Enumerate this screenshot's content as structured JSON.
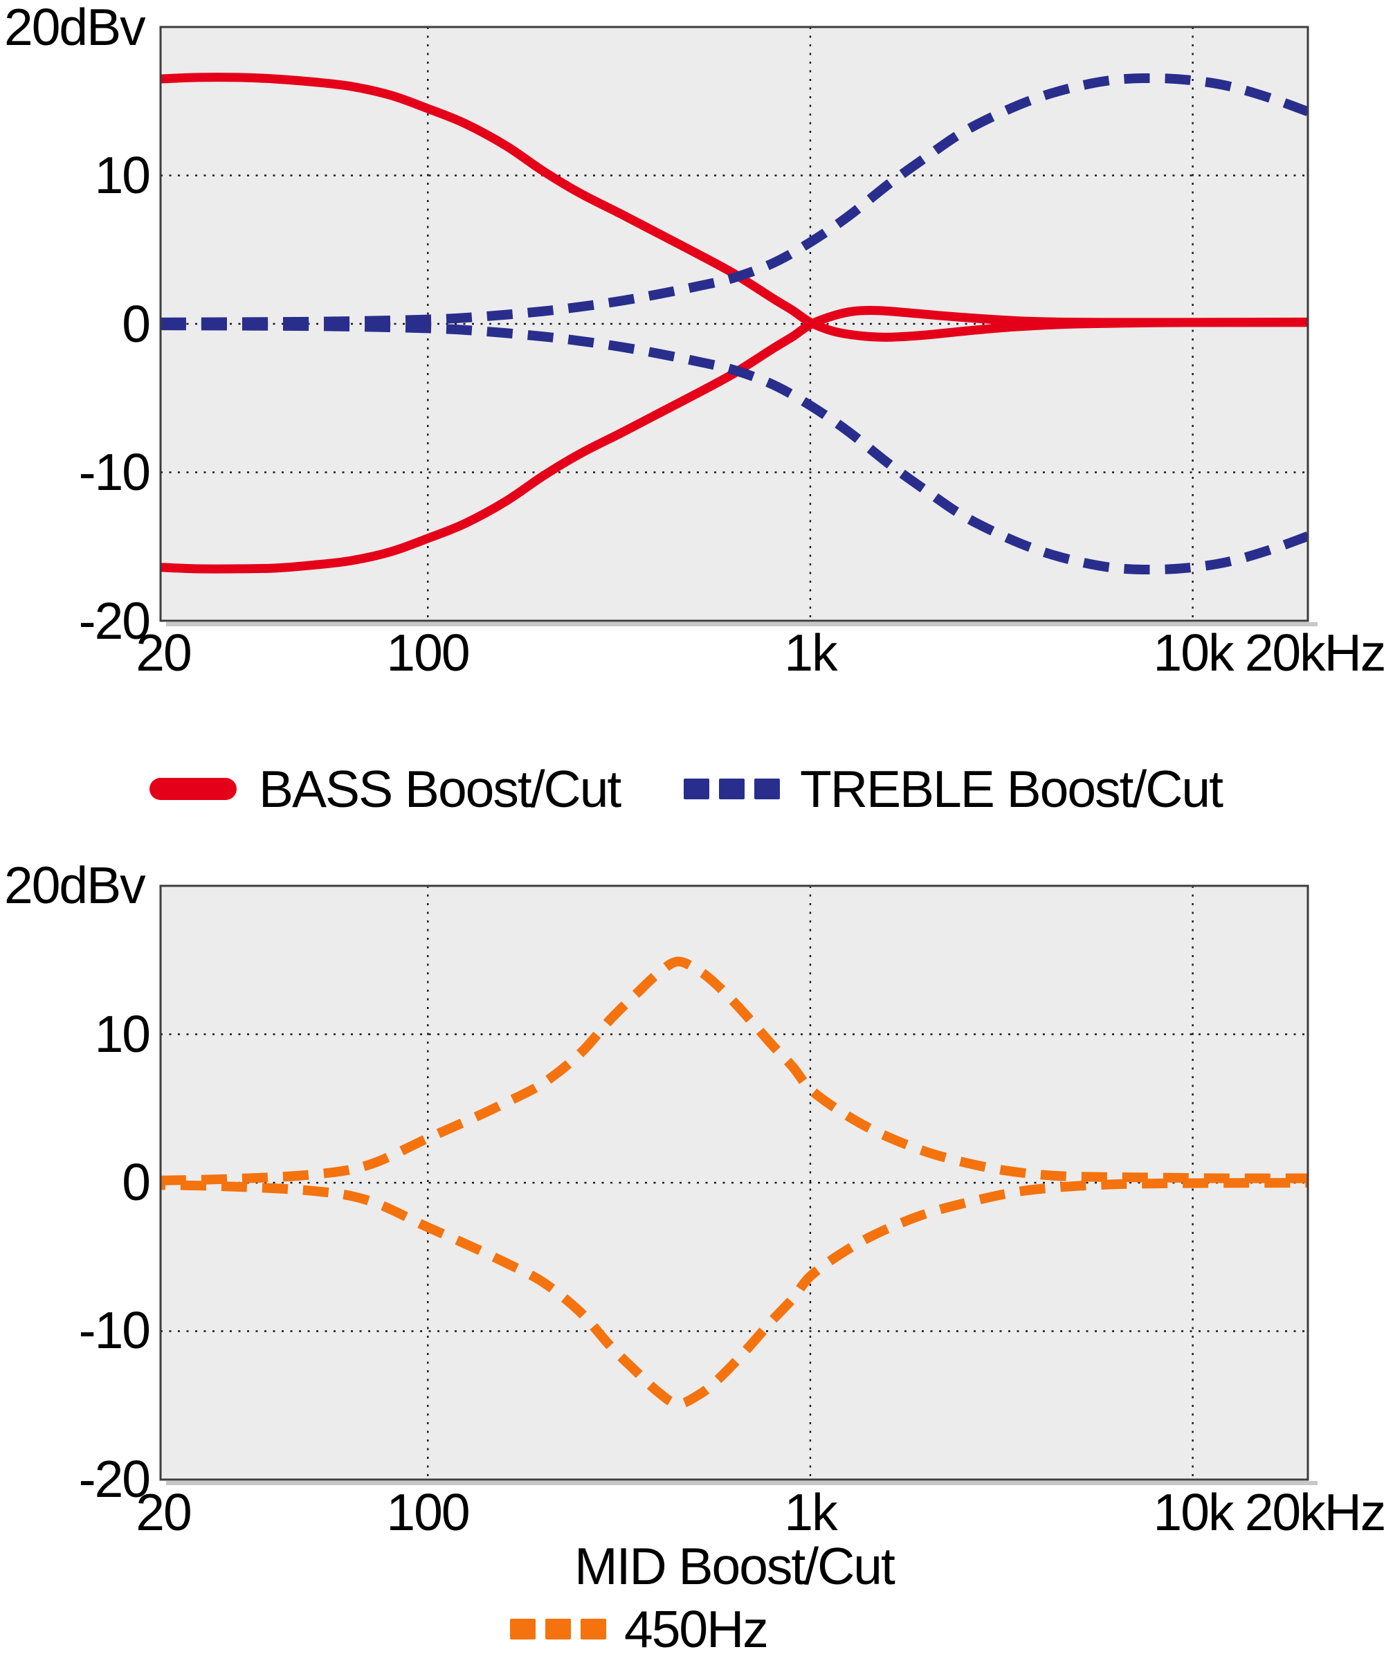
{
  "colors": {
    "bass": "#e50019",
    "treble": "#292e8d",
    "mid": "#f4730e",
    "plot_bg": "#ececec",
    "grid": "#161616",
    "border": "#3d3d3d",
    "shadow": "#c7c7c7"
  },
  "chart_data": [
    {
      "type": "line",
      "title": "",
      "x_axis": {
        "scale": "log",
        "min": 20,
        "max": 20000,
        "ticks": [
          {
            "f": 20,
            "label": "20"
          },
          {
            "f": 100,
            "label": "100"
          },
          {
            "f": 1000,
            "label": "1k"
          },
          {
            "f": 10000,
            "label": "10k"
          },
          {
            "f": 20000,
            "label": "20kHz"
          }
        ],
        "gridlines": [
          100,
          1000,
          10000
        ]
      },
      "y_axis": {
        "min": -20,
        "max": 20,
        "unit": "dBv",
        "ticks": [
          {
            "v": 20,
            "label": "20dBv"
          },
          {
            "v": 10,
            "label": "10"
          },
          {
            "v": 0,
            "label": "0"
          },
          {
            "v": -10,
            "label": "-10"
          },
          {
            "v": -20,
            "label": "-20"
          }
        ],
        "gridlines": [
          10,
          0,
          -10
        ]
      },
      "legend": [
        "BASS Boost/Cut",
        "TREBLE Boost/Cut"
      ],
      "series": [
        {
          "name": "BASS Boost",
          "color_key": "bass",
          "style": "solid",
          "points": [
            [
              20,
              16.5
            ],
            [
              25,
              16.6
            ],
            [
              32,
              16.6
            ],
            [
              40,
              16.5
            ],
            [
              50,
              16.3
            ],
            [
              63,
              16.0
            ],
            [
              80,
              15.4
            ],
            [
              100,
              14.5
            ],
            [
              125,
              13.5
            ],
            [
              160,
              12.0
            ],
            [
              200,
              10.3
            ],
            [
              250,
              8.8
            ],
            [
              320,
              7.4
            ],
            [
              400,
              6.1
            ],
            [
              500,
              4.8
            ],
            [
              630,
              3.4
            ],
            [
              800,
              1.7
            ],
            [
              900,
              0.9
            ],
            [
              1000,
              0.1
            ],
            [
              1150,
              -0.5
            ],
            [
              1350,
              -0.8
            ],
            [
              1600,
              -0.9
            ],
            [
              2000,
              -0.75
            ],
            [
              2500,
              -0.5
            ],
            [
              3200,
              -0.25
            ],
            [
              4000,
              -0.1
            ],
            [
              5000,
              0.0
            ],
            [
              8000,
              0.08
            ],
            [
              12000,
              0.1
            ],
            [
              20000,
              0.1
            ]
          ]
        },
        {
          "name": "BASS Cut",
          "color_key": "bass",
          "style": "solid",
          "points": [
            [
              20,
              -16.4
            ],
            [
              25,
              -16.5
            ],
            [
              32,
              -16.5
            ],
            [
              40,
              -16.45
            ],
            [
              50,
              -16.25
            ],
            [
              63,
              -15.95
            ],
            [
              80,
              -15.35
            ],
            [
              100,
              -14.45
            ],
            [
              125,
              -13.45
            ],
            [
              160,
              -11.95
            ],
            [
              200,
              -10.25
            ],
            [
              250,
              -8.75
            ],
            [
              320,
              -7.35
            ],
            [
              400,
              -6.05
            ],
            [
              500,
              -4.75
            ],
            [
              630,
              -3.35
            ],
            [
              800,
              -1.65
            ],
            [
              900,
              -0.85
            ],
            [
              1000,
              -0.05
            ],
            [
              1150,
              0.55
            ],
            [
              1300,
              0.85
            ],
            [
              1500,
              0.9
            ],
            [
              1800,
              0.75
            ],
            [
              2200,
              0.55
            ],
            [
              2800,
              0.35
            ],
            [
              3500,
              0.2
            ],
            [
              4500,
              0.12
            ],
            [
              6000,
              0.1
            ],
            [
              10000,
              0.1
            ],
            [
              20000,
              0.12
            ]
          ]
        },
        {
          "name": "TREBLE Boost",
          "color_key": "treble",
          "style": "dashed",
          "points": [
            [
              20,
              0.1
            ],
            [
              50,
              0.15
            ],
            [
              100,
              0.3
            ],
            [
              140,
              0.5
            ],
            [
              200,
              0.85
            ],
            [
              250,
              1.15
            ],
            [
              320,
              1.55
            ],
            [
              400,
              2.0
            ],
            [
              500,
              2.5
            ],
            [
              630,
              3.1
            ],
            [
              800,
              4.1
            ],
            [
              1000,
              5.5
            ],
            [
              1250,
              7.2
            ],
            [
              1600,
              9.4
            ],
            [
              2000,
              11.2
            ],
            [
              2500,
              12.9
            ],
            [
              3200,
              14.3
            ],
            [
              4000,
              15.3
            ],
            [
              5000,
              16.0
            ],
            [
              6300,
              16.45
            ],
            [
              8000,
              16.55
            ],
            [
              10000,
              16.4
            ],
            [
              12500,
              16.0
            ],
            [
              16000,
              15.2
            ],
            [
              20000,
              14.3
            ]
          ]
        },
        {
          "name": "TREBLE Cut",
          "color_key": "treble",
          "style": "dashed",
          "points": [
            [
              20,
              -0.1
            ],
            [
              50,
              -0.15
            ],
            [
              100,
              -0.3
            ],
            [
              140,
              -0.5
            ],
            [
              200,
              -0.85
            ],
            [
              250,
              -1.15
            ],
            [
              320,
              -1.55
            ],
            [
              400,
              -2.0
            ],
            [
              500,
              -2.5
            ],
            [
              630,
              -3.1
            ],
            [
              800,
              -4.1
            ],
            [
              1000,
              -5.5
            ],
            [
              1250,
              -7.2
            ],
            [
              1600,
              -9.4
            ],
            [
              2000,
              -11.2
            ],
            [
              2500,
              -12.9
            ],
            [
              3200,
              -14.3
            ],
            [
              4000,
              -15.3
            ],
            [
              5000,
              -16.0
            ],
            [
              6300,
              -16.45
            ],
            [
              8000,
              -16.55
            ],
            [
              10000,
              -16.4
            ],
            [
              12500,
              -16.0
            ],
            [
              16000,
              -15.2
            ],
            [
              20000,
              -14.3
            ]
          ]
        }
      ]
    },
    {
      "type": "line",
      "title": "",
      "xlabel": "MID Boost/Cut",
      "x_axis": {
        "scale": "log",
        "min": 20,
        "max": 20000,
        "ticks": [
          {
            "f": 20,
            "label": "20"
          },
          {
            "f": 100,
            "label": "100"
          },
          {
            "f": 1000,
            "label": "1k"
          },
          {
            "f": 10000,
            "label": "10k"
          },
          {
            "f": 20000,
            "label": "20kHz"
          }
        ],
        "gridlines": [
          100,
          1000,
          10000
        ]
      },
      "y_axis": {
        "min": -20,
        "max": 20,
        "unit": "dBv",
        "ticks": [
          {
            "v": 20,
            "label": "20dBv"
          },
          {
            "v": 10,
            "label": "10"
          },
          {
            "v": 0,
            "label": "0"
          },
          {
            "v": -10,
            "label": "-10"
          },
          {
            "v": -20,
            "label": "-20"
          }
        ],
        "gridlines": [
          10,
          0,
          -10
        ]
      },
      "legend": [
        "450Hz"
      ],
      "series": [
        {
          "name": "MID Boost (450Hz)",
          "color_key": "mid",
          "style": "dashed",
          "points": [
            [
              20,
              0.15
            ],
            [
              30,
              0.25
            ],
            [
              50,
              0.55
            ],
            [
              70,
              1.2
            ],
            [
              100,
              3.0
            ],
            [
              130,
              4.3
            ],
            [
              160,
              5.4
            ],
            [
              200,
              6.7
            ],
            [
              250,
              8.7
            ],
            [
              300,
              11.0
            ],
            [
              350,
              12.7
            ],
            [
              400,
              14.1
            ],
            [
              450,
              14.9
            ],
            [
              510,
              14.3
            ],
            [
              560,
              13.5
            ],
            [
              630,
              12.2
            ],
            [
              700,
              10.9
            ],
            [
              800,
              9.2
            ],
            [
              900,
              7.8
            ],
            [
              1000,
              6.3
            ],
            [
              1200,
              4.8
            ],
            [
              1500,
              3.4
            ],
            [
              2000,
              2.1
            ],
            [
              2700,
              1.2
            ],
            [
              3500,
              0.7
            ],
            [
              4500,
              0.45
            ],
            [
              6000,
              0.38
            ],
            [
              8000,
              0.35
            ],
            [
              12000,
              0.3
            ],
            [
              20000,
              0.3
            ]
          ]
        },
        {
          "name": "MID Cut (450Hz)",
          "color_key": "mid",
          "style": "dashed",
          "dash_phase": 30,
          "points": [
            [
              20,
              -0.15
            ],
            [
              30,
              -0.25
            ],
            [
              50,
              -0.55
            ],
            [
              70,
              -1.2
            ],
            [
              100,
              -3.0
            ],
            [
              130,
              -4.3
            ],
            [
              160,
              -5.4
            ],
            [
              200,
              -6.7
            ],
            [
              250,
              -8.7
            ],
            [
              300,
              -11.0
            ],
            [
              350,
              -12.7
            ],
            [
              400,
              -14.1
            ],
            [
              450,
              -14.9
            ],
            [
              510,
              -14.3
            ],
            [
              560,
              -13.5
            ],
            [
              630,
              -12.2
            ],
            [
              700,
              -10.9
            ],
            [
              800,
              -9.2
            ],
            [
              900,
              -7.8
            ],
            [
              1000,
              -6.3
            ],
            [
              1200,
              -4.8
            ],
            [
              1500,
              -3.4
            ],
            [
              2000,
              -2.1
            ],
            [
              2700,
              -1.2
            ],
            [
              3500,
              -0.6
            ],
            [
              4500,
              -0.3
            ],
            [
              6000,
              -0.12
            ],
            [
              8000,
              -0.05
            ],
            [
              12000,
              -0.02
            ],
            [
              20000,
              0.0
            ]
          ]
        }
      ]
    }
  ]
}
